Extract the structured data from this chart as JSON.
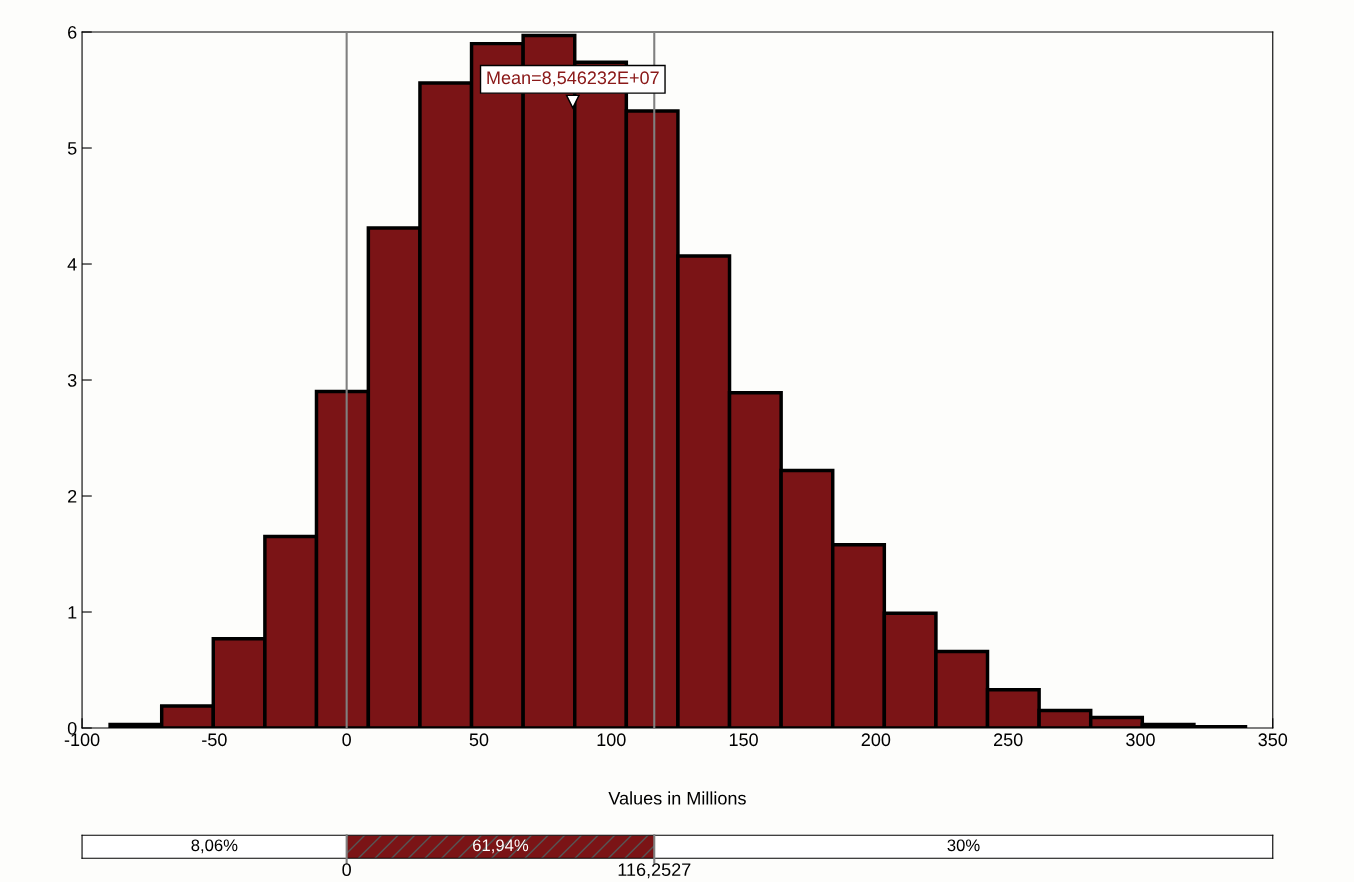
{
  "chart_data": {
    "type": "histogram",
    "xlabel": "Values in Millions",
    "bins": [
      -89.4,
      -69.9,
      -50.4,
      -30.9,
      -11.4,
      8.2,
      27.7,
      47.2,
      66.7,
      86.2,
      105.7,
      125.2,
      144.7,
      164.2,
      183.7,
      203.2,
      222.7,
      242.2,
      261.7,
      281.2,
      300.7,
      320.2,
      339.7
    ],
    "values": [
      0.03,
      0.19,
      0.77,
      1.65,
      2.9,
      4.31,
      5.56,
      5.9,
      5.97,
      5.74,
      5.32,
      4.07,
      2.89,
      2.22,
      1.58,
      0.99,
      0.66,
      0.33,
      0.15,
      0.09,
      0.03,
      0.01
    ],
    "color": "#7b1416",
    "xlim": [
      -100,
      350
    ],
    "xticks": [
      -100,
      -50,
      0,
      50,
      100,
      150,
      200,
      250,
      300,
      350
    ],
    "ylim": [
      0,
      6
    ],
    "yticks": [
      0,
      1,
      2,
      3,
      4,
      5,
      6
    ],
    "grid": false,
    "ref_lines": [
      {
        "axis": "x",
        "value": 0,
        "color": "#808080"
      },
      {
        "axis": "x",
        "value": 116.2527,
        "color": "#808080"
      }
    ],
    "annotations": [
      {
        "text": "Mean=8,546232E+07",
        "x": 85.46,
        "y": 5.4
      },
      "8,06%",
      "0",
      "61,94%",
      "116,2527",
      "30%"
    ]
  }
}
